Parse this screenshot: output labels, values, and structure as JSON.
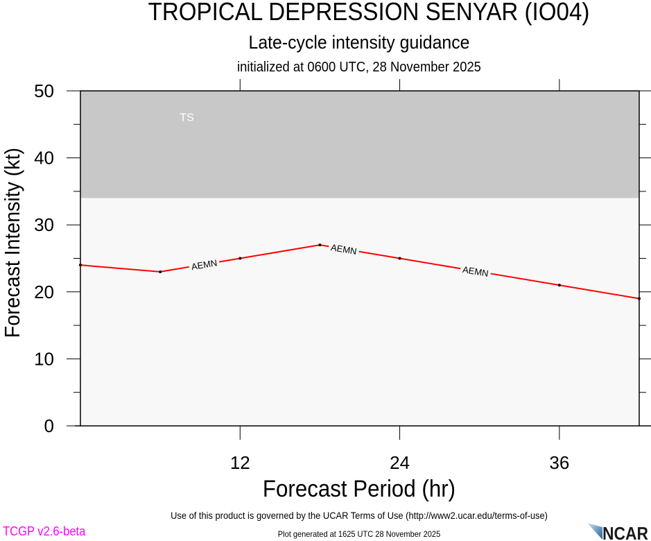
{
  "header": {
    "title": "TROPICAL DEPRESSION SENYAR (IO04)",
    "subtitle": "Late-cycle intensity guidance",
    "initialized": "initialized at 0600 UTC, 28 November 2025"
  },
  "footer": {
    "terms": "Use of this product is governed by the UCAR Terms of Use (http://www2.ucar.edu/terms-of-use)",
    "version": "TCGP v2.6-beta",
    "generated": "Plot generated at 1625 UTC   28 November 2025",
    "logo_text": "NCAR"
  },
  "chart_data": {
    "type": "line",
    "title": "TROPICAL DEPRESSION SENYAR (IO04)",
    "xlabel": "Forecast Period (hr)",
    "ylabel": "Forecast Intensity (kt)",
    "xlim": [
      0,
      42
    ],
    "ylim": [
      0,
      50
    ],
    "xticks": [
      12,
      24,
      36
    ],
    "yticks": [
      0,
      10,
      20,
      30,
      40,
      50
    ],
    "bands": [
      {
        "label": "TS",
        "from": 34,
        "to": 50,
        "color": "#c8c8c8"
      }
    ],
    "series": [
      {
        "name": "AEMN",
        "color": "#ff0000",
        "x": [
          0,
          6,
          12,
          18,
          24,
          30,
          36,
          42
        ],
        "y": [
          24,
          23,
          25,
          27,
          25,
          23,
          21,
          19
        ]
      }
    ]
  }
}
